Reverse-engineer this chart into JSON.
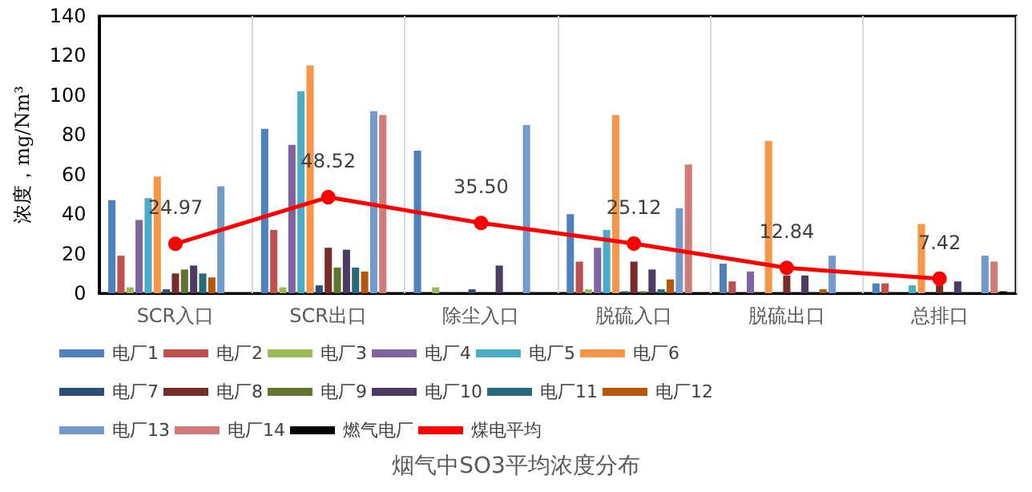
{
  "chart_data": {
    "type": "bar",
    "title": "烟气中SO3平均浓度分布",
    "ylabel": "浓度，mg/Nm³",
    "categories": [
      "SCR入口",
      "SCR出口",
      "除尘入口",
      "脱硫入口",
      "脱硫出口",
      "总排口"
    ],
    "ylim": [
      0,
      140
    ],
    "yticks": [
      0,
      20,
      40,
      60,
      80,
      100,
      120,
      140
    ],
    "grid": "x",
    "legend": "bottom",
    "series": [
      {
        "name": "电厂1",
        "color": "#4f81bd",
        "values": [
          47,
          83,
          72,
          40,
          15,
          5
        ]
      },
      {
        "name": "电厂2",
        "color": "#c0504d",
        "values": [
          19,
          32,
          null,
          16,
          6,
          5
        ]
      },
      {
        "name": "电厂3",
        "color": "#9bbb59",
        "values": [
          3,
          3,
          3,
          2,
          null,
          null
        ]
      },
      {
        "name": "电厂4",
        "color": "#8064a2",
        "values": [
          37,
          75,
          null,
          23,
          11,
          null
        ]
      },
      {
        "name": "电厂5",
        "color": "#4bacc6",
        "values": [
          48,
          102,
          null,
          32,
          null,
          4
        ]
      },
      {
        "name": "电厂6",
        "color": "#f79646",
        "values": [
          59,
          115,
          null,
          90,
          77,
          35
        ]
      },
      {
        "name": "电厂7",
        "color": "#2c4d75",
        "values": [
          2,
          4,
          2,
          1,
          null,
          null
        ]
      },
      {
        "name": "电厂8",
        "color": "#772c2a",
        "values": [
          10,
          23,
          null,
          16,
          9,
          4
        ]
      },
      {
        "name": "电厂9",
        "color": "#5f7530",
        "values": [
          12,
          13,
          null,
          1,
          null,
          null
        ]
      },
      {
        "name": "电厂10",
        "color": "#4d3b62",
        "values": [
          14,
          22,
          14,
          12,
          9,
          6
        ]
      },
      {
        "name": "电厂11",
        "color": "#276a7c",
        "values": [
          10,
          13,
          null,
          2,
          null,
          null
        ]
      },
      {
        "name": "电厂12",
        "color": "#b65708",
        "values": [
          8,
          11,
          null,
          7,
          2,
          null
        ]
      },
      {
        "name": "电厂13",
        "color": "#729aca",
        "values": [
          54,
          92,
          85,
          43,
          19,
          19
        ]
      },
      {
        "name": "电厂14",
        "color": "#d07b79",
        "values": [
          null,
          90,
          null,
          65,
          null,
          16
        ]
      },
      {
        "name": "燃气电厂",
        "color": "#000000",
        "values": [
          null,
          null,
          null,
          null,
          null,
          1
        ]
      },
      {
        "name": "煤电平均",
        "type": "line",
        "color": "#ff0000",
        "marker": "circle",
        "values": [
          24.97,
          48.52,
          35.5,
          25.12,
          12.84,
          7.42
        ],
        "value_labels": [
          "24.97",
          "48.52",
          "35.50",
          "25.12",
          "12.84",
          "7.42"
        ]
      }
    ]
  }
}
